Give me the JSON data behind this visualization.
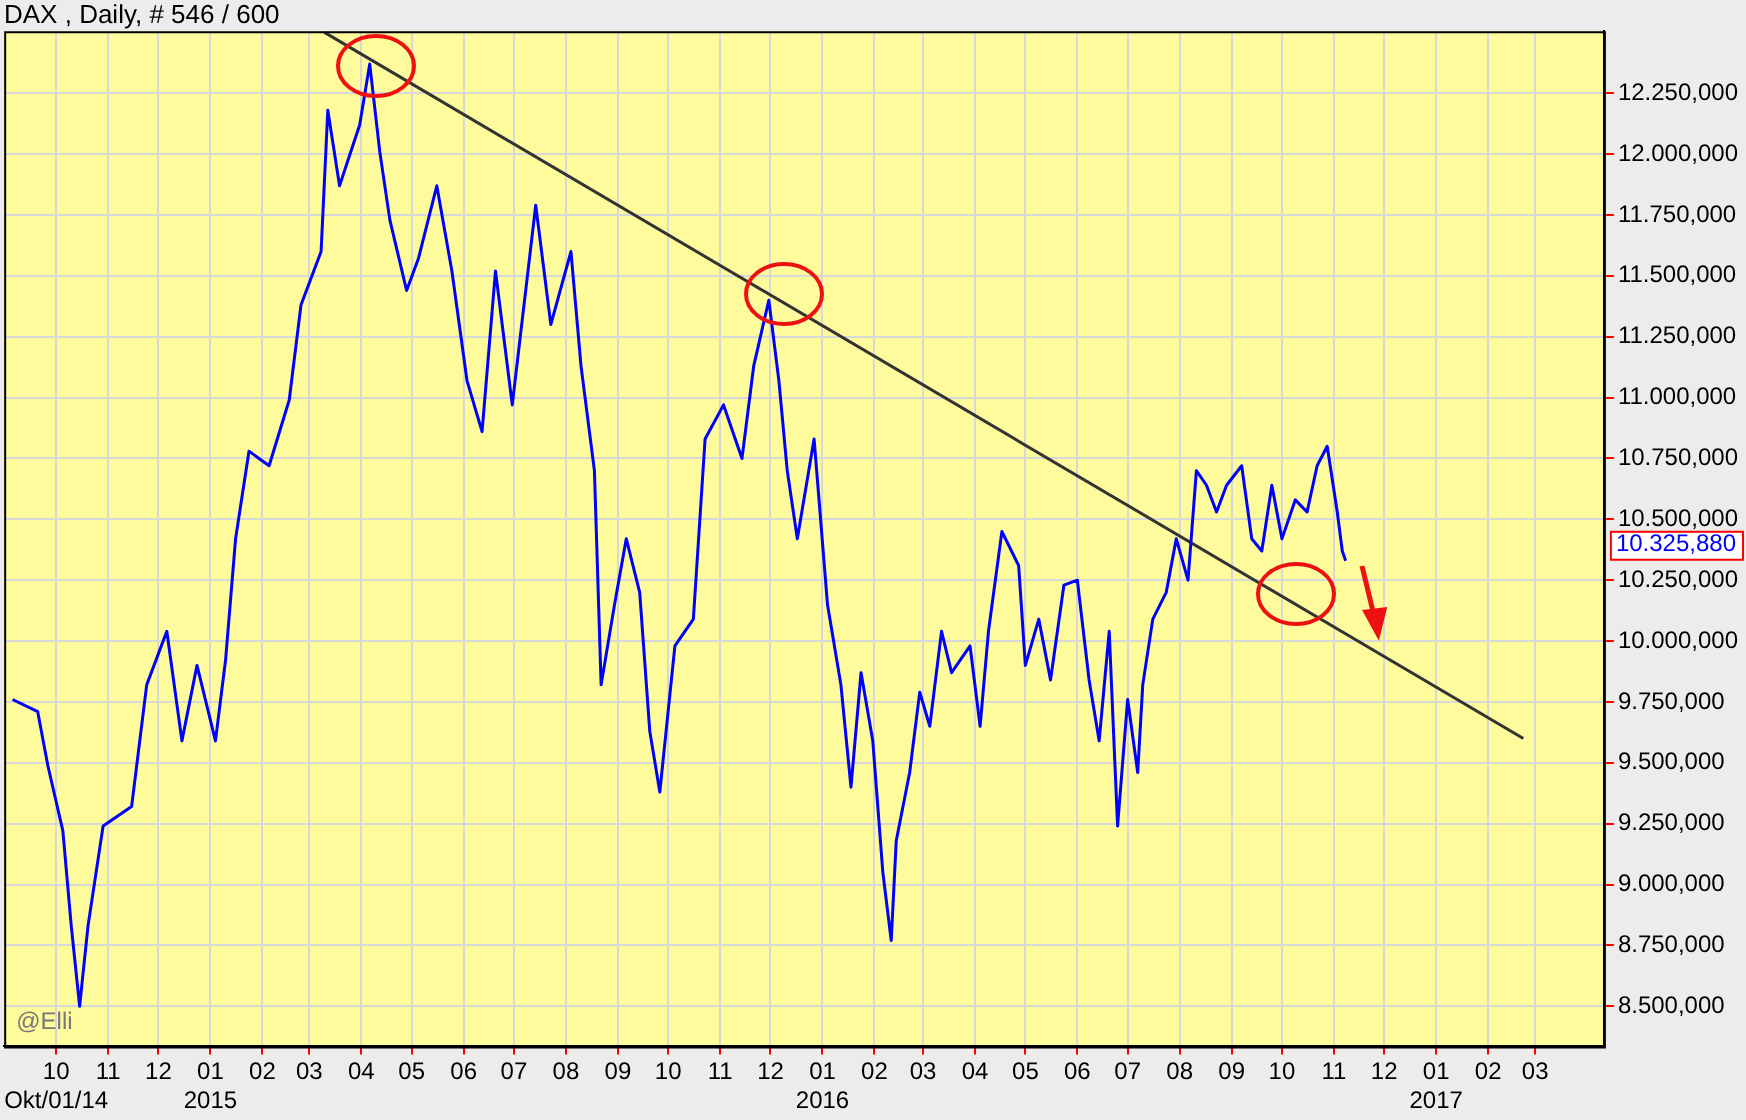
{
  "chart_data": {
    "type": "line",
    "title": "DAX , Daily, # 546 / 600",
    "xlim": [
      "2014-08-31",
      "2017-04-11"
    ],
    "xticks": [
      {
        "value": "2014-10-01",
        "label": "10\nOkt/01/14"
      },
      {
        "value": "2014-11-01",
        "label": "11"
      },
      {
        "value": "2014-12-01",
        "label": "12"
      },
      {
        "value": "2015-01-01",
        "label": "01\n2015"
      },
      {
        "value": "2015-02-01",
        "label": "02"
      },
      {
        "value": "2015-03-01",
        "label": "03"
      },
      {
        "value": "2015-04-01",
        "label": "04"
      },
      {
        "value": "2015-05-01",
        "label": "05"
      },
      {
        "value": "2015-06-01",
        "label": "06"
      },
      {
        "value": "2015-07-01",
        "label": "07"
      },
      {
        "value": "2015-08-01",
        "label": "08"
      },
      {
        "value": "2015-09-01",
        "label": "09"
      },
      {
        "value": "2015-10-01",
        "label": "10"
      },
      {
        "value": "2015-11-01",
        "label": "11"
      },
      {
        "value": "2015-12-01",
        "label": "12"
      },
      {
        "value": "2016-01-01",
        "label": "01\n2016"
      },
      {
        "value": "2016-02-01",
        "label": "02"
      },
      {
        "value": "2016-03-01",
        "label": "03"
      },
      {
        "value": "2016-04-01",
        "label": "04"
      },
      {
        "value": "2016-05-01",
        "label": "05"
      },
      {
        "value": "2016-06-01",
        "label": "06"
      },
      {
        "value": "2016-07-01",
        "label": "07"
      },
      {
        "value": "2016-08-01",
        "label": "08"
      },
      {
        "value": "2016-09-01",
        "label": "09"
      },
      {
        "value": "2016-10-01",
        "label": "10"
      },
      {
        "value": "2016-11-01",
        "label": "11"
      },
      {
        "value": "2016-12-01",
        "label": "12"
      },
      {
        "value": "2017-01-01",
        "label": "01\n2017"
      },
      {
        "value": "2017-02-01",
        "label": "02"
      },
      {
        "value": "2017-03-01",
        "label": "03"
      }
    ],
    "ylim": [
      8335,
      12505
    ],
    "yticks": [
      {
        "value": 8500,
        "label": "8.500,000"
      },
      {
        "value": 8750,
        "label": "8.750,000"
      },
      {
        "value": 9000,
        "label": "9.000,000"
      },
      {
        "value": 9250,
        "label": "9.250,000"
      },
      {
        "value": 9500,
        "label": "9.500,000"
      },
      {
        "value": 9750,
        "label": "9.750,000"
      },
      {
        "value": 10000,
        "label": "10.000,000"
      },
      {
        "value": 10250,
        "label": "10.250,000"
      },
      {
        "value": 10500,
        "label": "10.500,000"
      },
      {
        "value": 10750,
        "label": "10.750,000"
      },
      {
        "value": 11000,
        "label": "11.000,000"
      },
      {
        "value": 11250,
        "label": "11.250,000"
      },
      {
        "value": 11500,
        "label": "11.500,000"
      },
      {
        "value": 11750,
        "label": "11.750,000"
      },
      {
        "value": 12000,
        "label": "12.000,000"
      },
      {
        "value": 12250,
        "label": "12.250,000"
      }
    ],
    "grid": true,
    "legend": false,
    "marker": "none",
    "series": [
      {
        "color": "#0000ff",
        "x": [
          "2014-09-05",
          "2014-09-20",
          "2014-09-26",
          "2014-10-05",
          "2014-10-10",
          "2014-10-15",
          "2014-10-20",
          "2014-10-29",
          "2014-11-15",
          "2014-11-24",
          "2014-12-06",
          "2014-12-15",
          "2014-12-24",
          "2015-01-04",
          "2015-01-10",
          "2015-01-16",
          "2015-01-24",
          "2015-02-05",
          "2015-02-17",
          "2015-02-24",
          "2015-03-08",
          "2015-03-12",
          "2015-03-19",
          "2015-03-31",
          "2015-04-06",
          "2015-04-12",
          "2015-04-18",
          "2015-04-28",
          "2015-05-05",
          "2015-05-16",
          "2015-05-25",
          "2015-06-03",
          "2015-06-12",
          "2015-06-20",
          "2015-06-30",
          "2015-07-14",
          "2015-07-23",
          "2015-08-04",
          "2015-08-10",
          "2015-08-18",
          "2015-08-22",
          "2015-08-30",
          "2015-09-06",
          "2015-09-14",
          "2015-09-20",
          "2015-09-26",
          "2015-10-05",
          "2015-10-16",
          "2015-10-23",
          "2015-11-03",
          "2015-11-14",
          "2015-11-21",
          "2015-11-30",
          "2015-12-06",
          "2015-12-11",
          "2015-12-17",
          "2015-12-27",
          "2016-01-04",
          "2016-01-12",
          "2016-01-18",
          "2016-01-24",
          "2016-01-31",
          "2016-02-06",
          "2016-02-11",
          "2016-02-14",
          "2016-02-22",
          "2016-02-28",
          "2016-03-05",
          "2016-03-12",
          "2016-03-18",
          "2016-03-29",
          "2016-04-04",
          "2016-04-09",
          "2016-04-17",
          "2016-04-27",
          "2016-05-01",
          "2016-05-09",
          "2016-05-16",
          "2016-05-24",
          "2016-06-01",
          "2016-06-08",
          "2016-06-14",
          "2016-06-20",
          "2016-06-25",
          "2016-07-01",
          "2016-07-07",
          "2016-07-10",
          "2016-07-16",
          "2016-07-24",
          "2016-07-30",
          "2016-08-06",
          "2016-08-11",
          "2016-08-17",
          "2016-08-23",
          "2016-08-29",
          "2016-09-07",
          "2016-09-13",
          "2016-09-19",
          "2016-09-25",
          "2016-10-01",
          "2016-10-09",
          "2016-10-16",
          "2016-10-22",
          "2016-10-28",
          "2016-11-03",
          "2016-11-06",
          "2016-11-08"
        ],
        "values": [
          9760,
          9710,
          9490,
          9220,
          8830,
          8500,
          8830,
          9240,
          9320,
          9820,
          10040,
          9590,
          9900,
          9590,
          9920,
          10420,
          10780,
          10720,
          10990,
          11380,
          11600,
          12180,
          11870,
          12120,
          12370,
          12010,
          11730,
          11440,
          11570,
          11870,
          11520,
          11070,
          10860,
          11520,
          10970,
          11790,
          11300,
          11600,
          11130,
          10700,
          9820,
          10150,
          10420,
          10200,
          9630,
          9380,
          9980,
          10090,
          10830,
          10970,
          10750,
          11130,
          11400,
          11070,
          10700,
          10420,
          10830,
          10150,
          9820,
          9400,
          9870,
          9590,
          9050,
          8770,
          9180,
          9460,
          9790,
          9650,
          10040,
          9870,
          9980,
          9650,
          10040,
          10450,
          10310,
          9900,
          10090,
          9840,
          10230,
          10250,
          9840,
          9590,
          10040,
          9240,
          9760,
          9460,
          9820,
          10090,
          10200,
          10420,
          10250,
          10700,
          10640,
          10530,
          10640,
          10720,
          10420,
          10370,
          10640,
          10420,
          10580,
          10530,
          10720,
          10800,
          10530,
          10370,
          10330
        ]
      },
      {
        "color": "#333333",
        "x": [
          "2015-03-10",
          "2017-02-22"
        ],
        "values": [
          12500,
          9600
        ]
      }
    ],
    "annotations": [
      "@Elli",
      "10.325,880"
    ]
  }
}
